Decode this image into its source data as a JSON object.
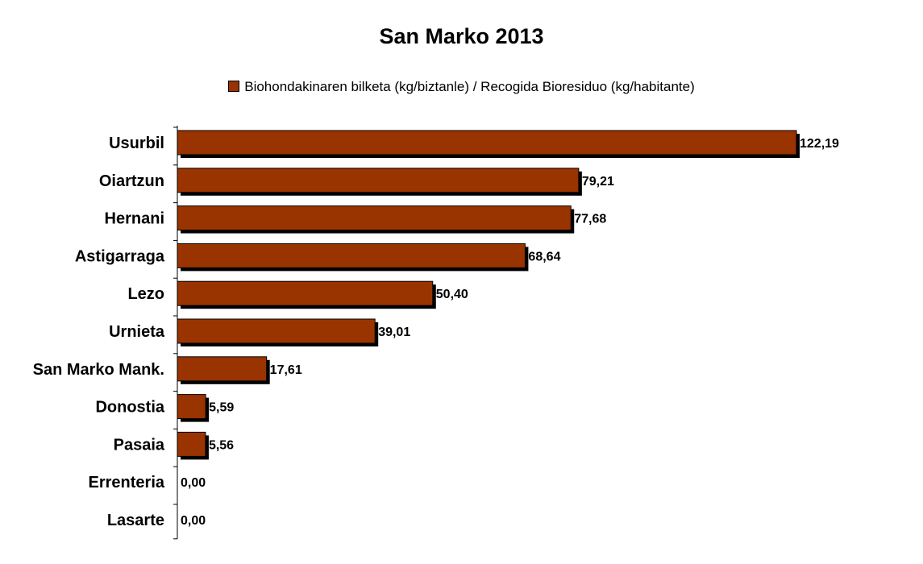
{
  "chart_data": {
    "type": "bar",
    "orientation": "horizontal",
    "title": "San Marko 2013",
    "categories": [
      "Usurbil",
      "Oiartzun",
      "Hernani",
      "Astigarraga",
      "Lezo",
      "Urnieta",
      "San Marko Mank.",
      "Donostia",
      "Pasaia",
      "Errenteria",
      "Lasarte"
    ],
    "series": [
      {
        "name": "Biohondakinaren bilketa (kg/biztanle) / Recogida Bioresiduo (kg/habitante)",
        "values": [
          122.19,
          79.21,
          77.68,
          68.64,
          50.4,
          39.01,
          17.61,
          5.59,
          5.56,
          0.0,
          0.0
        ],
        "labels": [
          "122,19",
          "79,21",
          "77,68",
          "68,64",
          "50,40",
          "39,01",
          "17,61",
          "5,59",
          "5,56",
          "0,00",
          "0,00"
        ],
        "color": "#993300"
      }
    ],
    "xlim": [
      0,
      122.19
    ],
    "grid": false,
    "legend_position": "top"
  }
}
